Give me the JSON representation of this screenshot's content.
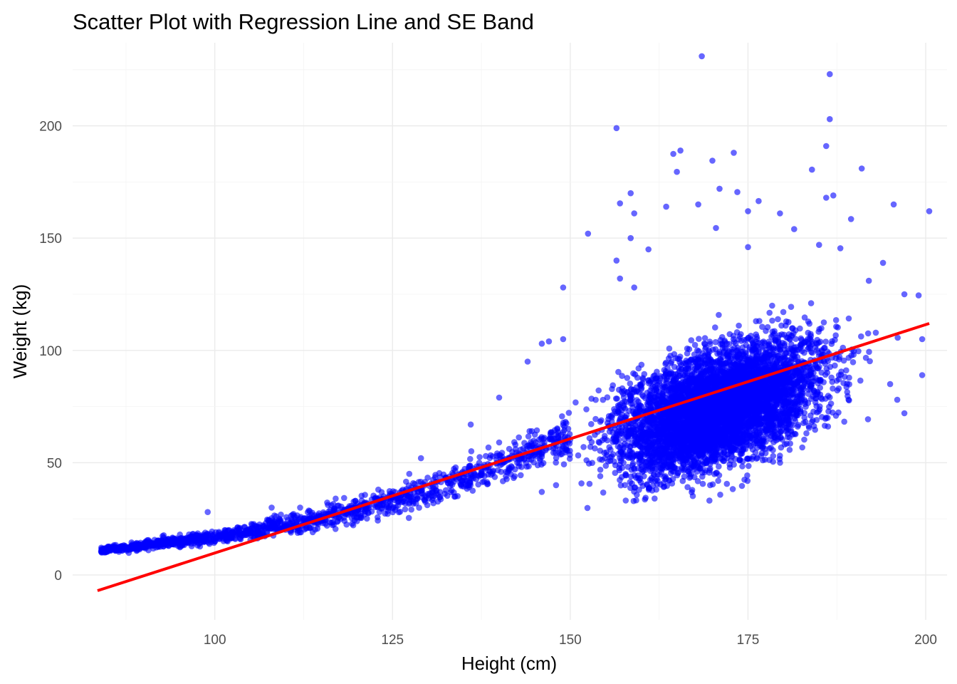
{
  "chart_data": {
    "type": "scatter",
    "title": "Scatter Plot with Regression Line and SE Band",
    "xlabel": "Height (cm)",
    "ylabel": "Weight (kg)",
    "xlim": [
      80,
      203
    ],
    "ylim": [
      -20,
      237
    ],
    "x_ticks": [
      100,
      125,
      150,
      175,
      200
    ],
    "y_ticks": [
      0,
      50,
      100,
      150,
      200
    ],
    "x_tick_labels": [
      "100",
      "125",
      "150",
      "175",
      "200"
    ],
    "y_tick_labels": [
      "0",
      "50",
      "100",
      "150",
      "200"
    ],
    "grid": true,
    "point_color": "#0000ff",
    "point_opacity": 0.6,
    "line_color": "#ff0000",
    "regression_line": {
      "x": [
        83.5,
        200.5
      ],
      "y": [
        -7,
        112
      ]
    },
    "series": [
      {
        "points": [
          [
            168.5,
            231
          ],
          [
            186.5,
            223
          ],
          [
            186.5,
            203
          ],
          [
            156.5,
            199
          ],
          [
            186,
            191
          ],
          [
            165.5,
            189
          ],
          [
            164.5,
            187.5
          ],
          [
            173,
            188
          ],
          [
            170,
            184.5
          ],
          [
            184,
            180.5
          ],
          [
            191,
            181
          ],
          [
            165,
            179.5
          ],
          [
            171,
            172
          ],
          [
            158.5,
            170
          ],
          [
            173.5,
            170.5
          ],
          [
            176.5,
            166.5
          ],
          [
            186,
            168
          ],
          [
            187,
            169
          ],
          [
            157,
            165.5
          ],
          [
            163.5,
            164
          ],
          [
            168,
            165
          ],
          [
            195.5,
            165
          ],
          [
            175,
            162
          ],
          [
            200.5,
            162
          ],
          [
            159,
            161
          ],
          [
            179.5,
            161
          ],
          [
            189.5,
            158.5
          ],
          [
            152.5,
            152
          ],
          [
            170.5,
            154.5
          ],
          [
            181.5,
            154
          ],
          [
            158.5,
            150
          ],
          [
            185,
            147
          ],
          [
            188,
            145.5
          ],
          [
            161,
            145
          ],
          [
            175,
            146
          ],
          [
            156.5,
            140
          ],
          [
            194,
            139
          ],
          [
            157,
            132
          ],
          [
            159,
            128
          ],
          [
            149,
            128
          ],
          [
            192,
            131
          ],
          [
            197,
            125
          ],
          [
            199,
            124.5
          ],
          [
            199.5,
            105
          ],
          [
            199.5,
            89
          ],
          [
            195,
            85
          ],
          [
            196,
            78
          ],
          [
            197,
            72
          ],
          [
            149,
            105
          ],
          [
            146,
            103
          ],
          [
            147,
            104
          ],
          [
            144,
            95
          ],
          [
            140,
            79
          ],
          [
            136,
            67
          ],
          [
            140,
            59
          ],
          [
            129,
            52
          ],
          [
            123,
            38
          ],
          [
            117,
            34
          ],
          [
            112,
            30
          ],
          [
            108,
            30
          ],
          [
            99,
            28
          ],
          [
            146,
            37
          ],
          [
            148,
            40
          ]
        ]
      }
    ]
  }
}
